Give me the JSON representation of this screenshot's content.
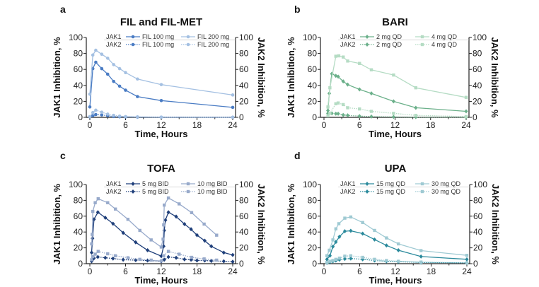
{
  "chart_data": [
    {
      "type": "line",
      "panel_letter": "a",
      "title": "FIL and FIL-MET",
      "xlabel": "Time, Hours",
      "ylabel_left": "JAK1 Inhibition, %",
      "ylabel_right": "JAK2 Inhibition, %",
      "xlim": [
        0,
        24
      ],
      "xticks": [
        0,
        6,
        12,
        18,
        24
      ],
      "ylim": [
        0,
        100
      ],
      "yticks": [
        0,
        20,
        40,
        60,
        80,
        100
      ],
      "legend_rows": [
        "JAK1",
        "JAK2"
      ],
      "legend": "top",
      "series": [
        {
          "name": "FIL 100 mg",
          "target": "JAK1",
          "color": "#4a7cc4",
          "marker": "circle",
          "dash": false,
          "points": [
            [
              0,
              13
            ],
            [
              0.5,
              61
            ],
            [
              1,
              69
            ],
            [
              2,
              61
            ],
            [
              3,
              54
            ],
            [
              4,
              45
            ],
            [
              5,
              39
            ],
            [
              6,
              34
            ],
            [
              8,
              26
            ],
            [
              12,
              21
            ],
            [
              24,
              12.5
            ]
          ]
        },
        {
          "name": "FIL 200 mg",
          "target": "JAK1",
          "color": "#a4c0e2",
          "marker": "circle",
          "dash": false,
          "points": [
            [
              0,
              29
            ],
            [
              0.5,
              78
            ],
            [
              1,
              84
            ],
            [
              2,
              79
            ],
            [
              3,
              74
            ],
            [
              4,
              66
            ],
            [
              5,
              61
            ],
            [
              6,
              56
            ],
            [
              8,
              48
            ],
            [
              12,
              41
            ],
            [
              24,
              28
            ]
          ]
        },
        {
          "name": "FIL 100 mg",
          "target": "JAK2",
          "color": "#4a7cc4",
          "marker": "circle",
          "dash": true,
          "points": [
            [
              0,
              0.5
            ],
            [
              0.5,
              2
            ],
            [
              1,
              3.5
            ],
            [
              2,
              3
            ],
            [
              3,
              2
            ],
            [
              4,
              1
            ],
            [
              5,
              0.7
            ],
            [
              6,
              0.5
            ],
            [
              8,
              0.3
            ],
            [
              12,
              0.2
            ],
            [
              24,
              0.1
            ]
          ]
        },
        {
          "name": "FIL 200 mg",
          "target": "JAK2",
          "color": "#a4c0e2",
          "marker": "circle",
          "dash": true,
          "points": [
            [
              0,
              1
            ],
            [
              0.5,
              6
            ],
            [
              1,
              9
            ],
            [
              2,
              6.5
            ],
            [
              3,
              4
            ],
            [
              4,
              2.5
            ],
            [
              5,
              1.5
            ],
            [
              6,
              1
            ],
            [
              8,
              0.6
            ],
            [
              12,
              0.3
            ],
            [
              24,
              0.1
            ]
          ]
        }
      ]
    },
    {
      "type": "line",
      "panel_letter": "b",
      "title": "BARI",
      "xlabel": "Time, Hours",
      "ylabel_left": "JAK1 Inhibition, %",
      "ylabel_right": "JAK2 Inhibition, %",
      "xlim": [
        0,
        24
      ],
      "xticks": [
        0,
        6,
        12,
        18,
        24
      ],
      "ylim": [
        0,
        100
      ],
      "yticks": [
        0,
        20,
        40,
        60,
        80,
        100
      ],
      "legend_rows": [
        "JAK1",
        "JAK2"
      ],
      "legend": "top",
      "series": [
        {
          "name": "2 mg QD",
          "target": "JAK1",
          "color": "#6bb08a",
          "marker": "diamond",
          "dash": false,
          "points": [
            [
              0.67,
              8.5
            ],
            [
              0.9,
              30
            ],
            [
              1.33,
              54.5
            ],
            [
              2,
              52
            ],
            [
              2.4,
              51
            ],
            [
              3.25,
              45
            ],
            [
              4,
              41
            ],
            [
              6,
              35
            ],
            [
              8,
              30
            ],
            [
              11.75,
              20
            ],
            [
              15.5,
              12
            ],
            [
              24,
              7.5
            ]
          ]
        },
        {
          "name": "4 mg QD",
          "target": "JAK1",
          "color": "#b5dcc4",
          "marker": "square",
          "dash": false,
          "points": [
            [
              0.67,
              13
            ],
            [
              1,
              37
            ],
            [
              2,
              76.5
            ],
            [
              2.5,
              77
            ],
            [
              3.25,
              75.5
            ],
            [
              4,
              70.5
            ],
            [
              6,
              67.5
            ],
            [
              8,
              59.5
            ],
            [
              11.75,
              53
            ],
            [
              15.5,
              37
            ],
            [
              24,
              25
            ]
          ]
        },
        {
          "name": "2 mg QD",
          "target": "JAK2",
          "color": "#6bb08a",
          "marker": "diamond",
          "dash": true,
          "points": [
            [
              0.67,
              5
            ],
            [
              1.33,
              5
            ],
            [
              2,
              4.5
            ],
            [
              2.4,
              4.5
            ],
            [
              3.25,
              3
            ],
            [
              4,
              2.5
            ],
            [
              6,
              1.5
            ],
            [
              8,
              1
            ],
            [
              11.75,
              0.5
            ],
            [
              15.5,
              0.3
            ],
            [
              24,
              0.2
            ]
          ]
        },
        {
          "name": "4 mg QD",
          "target": "JAK2",
          "color": "#b5dcc4",
          "marker": "square",
          "dash": true,
          "points": [
            [
              0.67,
              2
            ],
            [
              1,
              5
            ],
            [
              2,
              17
            ],
            [
              2.4,
              18
            ],
            [
              3.25,
              16
            ],
            [
              4,
              12
            ],
            [
              6,
              10.5
            ],
            [
              8,
              7.5
            ],
            [
              11.75,
              5
            ],
            [
              15.5,
              2.5
            ],
            [
              24,
              1
            ]
          ]
        }
      ]
    },
    {
      "type": "line",
      "panel_letter": "c",
      "title": "TOFA",
      "xlabel": "Time, Hours",
      "ylabel_left": "JAK1 Inhibition, %",
      "ylabel_right": "JAK2 Inhibition, %",
      "xlim": [
        0,
        24
      ],
      "xticks": [
        0,
        6,
        12,
        18,
        24
      ],
      "ylim": [
        0,
        100
      ],
      "yticks": [
        0,
        20,
        40,
        60,
        80,
        100
      ],
      "legend_rows": [
        "JAK1",
        "JAK2"
      ],
      "legend": "top",
      "series": [
        {
          "name": "5 mg BID",
          "target": "JAK1",
          "color": "#1f3f7a",
          "marker": "diamond",
          "dash": false,
          "points": [
            [
              0.3,
              14
            ],
            [
              0.45,
              32
            ],
            [
              0.7,
              56
            ],
            [
              1.35,
              65
            ],
            [
              2.6,
              58
            ],
            [
              3.9,
              50.5
            ],
            [
              5.6,
              39
            ],
            [
              7.7,
              27
            ],
            [
              9.7,
              17
            ],
            [
              12,
              9.5
            ],
            [
              12.4,
              22
            ],
            [
              12.5,
              42
            ],
            [
              12.7,
              55
            ],
            [
              13.2,
              65
            ],
            [
              14.5,
              59.5
            ],
            [
              15.9,
              50
            ],
            [
              17,
              43.5
            ],
            [
              18,
              36
            ],
            [
              19.3,
              29
            ],
            [
              20.4,
              22
            ],
            [
              22.5,
              14
            ],
            [
              24,
              11
            ]
          ]
        },
        {
          "name": "10 mg BID",
          "target": "JAK1",
          "color": "#98aacb",
          "marker": "square",
          "dash": false,
          "points": [
            [
              0.3,
              25
            ],
            [
              0.4,
              37
            ],
            [
              0.5,
              66
            ],
            [
              0.9,
              77
            ],
            [
              1.4,
              82
            ],
            [
              3,
              77
            ],
            [
              4.3,
              69
            ],
            [
              6.4,
              56
            ],
            [
              8.4,
              42
            ],
            [
              10.3,
              30
            ],
            [
              12,
              21
            ],
            [
              12.3,
              31
            ],
            [
              12.4,
              49
            ],
            [
              12.5,
              74
            ],
            [
              13.2,
              83
            ],
            [
              15,
              75.5
            ],
            [
              17.1,
              64.5
            ],
            [
              19.2,
              50
            ],
            [
              21.3,
              36
            ]
          ]
        },
        {
          "name": "5 mg BID",
          "target": "JAK2",
          "color": "#1f3f7a",
          "marker": "diamond",
          "dash": true,
          "points": [
            [
              0.3,
              3
            ],
            [
              0.45,
              5
            ],
            [
              0.7,
              7
            ],
            [
              1.35,
              8.5
            ],
            [
              2.6,
              7.5
            ],
            [
              3.9,
              6.5
            ],
            [
              5.6,
              5
            ],
            [
              7.7,
              4.5
            ],
            [
              9.7,
              4
            ],
            [
              12,
              3
            ],
            [
              12.5,
              5
            ],
            [
              13.2,
              8.5
            ],
            [
              14.5,
              7.5
            ],
            [
              15.9,
              5.5
            ],
            [
              17,
              5
            ],
            [
              18,
              4
            ],
            [
              19.3,
              4
            ],
            [
              20.4,
              3.5
            ],
            [
              22.5,
              3
            ],
            [
              24,
              2.5
            ]
          ]
        },
        {
          "name": "10 mg BID",
          "target": "JAK2",
          "color": "#98aacb",
          "marker": "square",
          "dash": true,
          "points": [
            [
              0.3,
              5
            ],
            [
              0.5,
              9
            ],
            [
              0.9,
              12
            ],
            [
              1.4,
              15.5
            ],
            [
              3,
              12.5
            ],
            [
              4.3,
              10
            ],
            [
              6.4,
              7.5
            ],
            [
              8.4,
              5.5
            ],
            [
              10.3,
              4.5
            ],
            [
              12,
              3.5
            ],
            [
              12.4,
              10
            ],
            [
              13.2,
              15.5
            ],
            [
              15,
              12
            ],
            [
              17.1,
              8
            ],
            [
              19.2,
              6
            ],
            [
              21.3,
              4.5
            ]
          ]
        }
      ]
    },
    {
      "type": "line",
      "panel_letter": "d",
      "title": "UPA",
      "xlabel": "Time, Hours",
      "ylabel_left": "JAK1 Inhibition, %",
      "ylabel_right": "JAK2 Inhibition, %",
      "xlim": [
        0,
        24
      ],
      "xticks": [
        0,
        6,
        12,
        18,
        24
      ],
      "ylim": [
        0,
        100
      ],
      "yticks": [
        0,
        20,
        40,
        60,
        80,
        100
      ],
      "legend_rows": [
        "JAK1",
        "JAK2"
      ],
      "legend": "top",
      "series": [
        {
          "name": "15 mg QD",
          "target": "JAK1",
          "color": "#2b8a9c",
          "marker": "diamond",
          "dash": false,
          "points": [
            [
              0.5,
              5.5
            ],
            [
              1,
              10
            ],
            [
              1.5,
              21.5
            ],
            [
              2,
              27.5
            ],
            [
              2.6,
              34
            ],
            [
              3.5,
              41
            ],
            [
              4.5,
              41.5
            ],
            [
              6.5,
              38
            ],
            [
              8.5,
              30.5
            ],
            [
              10.5,
              23
            ],
            [
              12.5,
              17
            ],
            [
              16.3,
              9
            ],
            [
              24,
              5.5
            ]
          ]
        },
        {
          "name": "30 mg QD",
          "target": "JAK1",
          "color": "#9fcad3",
          "marker": "square",
          "dash": false,
          "points": [
            [
              0.5,
              10
            ],
            [
              0.9,
              17
            ],
            [
              1.5,
              30
            ],
            [
              2,
              44
            ],
            [
              2.5,
              50.5
            ],
            [
              3.5,
              57.5
            ],
            [
              4.5,
              59
            ],
            [
              6.5,
              52
            ],
            [
              8.5,
              42
            ],
            [
              10.5,
              32.5
            ],
            [
              12.5,
              25
            ],
            [
              16.3,
              16.5
            ],
            [
              24,
              10.5
            ]
          ]
        },
        {
          "name": "15 mg QD",
          "target": "JAK2",
          "color": "#2b8a9c",
          "marker": "diamond",
          "dash": true,
          "points": [
            [
              0.5,
              1
            ],
            [
              1,
              2
            ],
            [
              1.5,
              3
            ],
            [
              2,
              4
            ],
            [
              2.6,
              5
            ],
            [
              3.5,
              6
            ],
            [
              4.5,
              6.5
            ],
            [
              6.5,
              5.5
            ],
            [
              8.5,
              4
            ],
            [
              10.5,
              3
            ],
            [
              12.5,
              2.5
            ],
            [
              16.3,
              1.5
            ],
            [
              24,
              1
            ]
          ]
        },
        {
          "name": "30 mg QD",
          "target": "JAK2",
          "color": "#9fcad3",
          "marker": "square",
          "dash": true,
          "points": [
            [
              0.5,
              1.5
            ],
            [
              1,
              3
            ],
            [
              1.5,
              4
            ],
            [
              2,
              5.5
            ],
            [
              2.6,
              7
            ],
            [
              3.5,
              9.5
            ],
            [
              4.5,
              10
            ],
            [
              6.5,
              8
            ],
            [
              8.5,
              5.5
            ],
            [
              10.5,
              4
            ],
            [
              12.5,
              3
            ],
            [
              16.3,
              2
            ],
            [
              24,
              1
            ]
          ]
        }
      ]
    }
  ]
}
